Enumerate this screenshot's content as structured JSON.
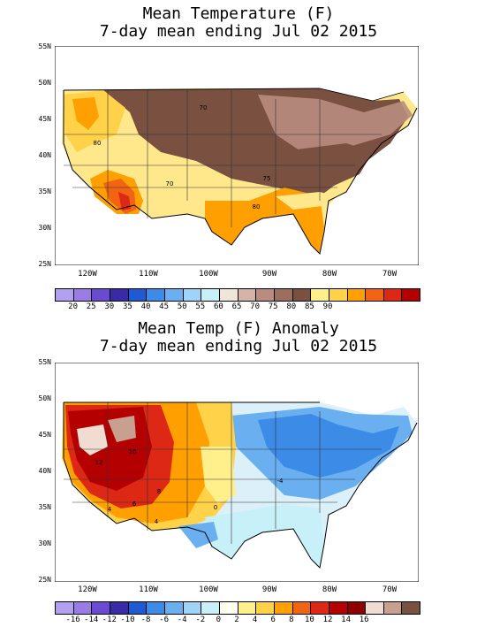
{
  "top": {
    "title1": "Mean Temperature (F)",
    "title2": "7-day mean ending Jul 02 2015",
    "lat_labels": [
      "55N",
      "50N",
      "45N",
      "40N",
      "35N",
      "30N",
      "25N"
    ],
    "lon_labels": [
      "120W",
      "110W",
      "100W",
      "90W",
      "80W",
      "70W"
    ],
    "contour_labels": [
      "70",
      "80",
      "70",
      "75",
      "80"
    ],
    "colorbar_colors": [
      "#b4a0f0",
      "#9b7be6",
      "#6a4ad0",
      "#3b2aa8",
      "#1e5ad2",
      "#3c8be6",
      "#6ab0f0",
      "#9ed4f8",
      "#c8f0f8",
      "#f0e6d8",
      "#d4b4a8",
      "#b88c80",
      "#9c6e60",
      "#7a5040",
      "#fff08c",
      "#ffd24a",
      "#ffa000",
      "#f06414",
      "#dc2814",
      "#b40000"
    ],
    "colorbar_labels": [
      "20",
      "25",
      "30",
      "35",
      "40",
      "45",
      "50",
      "55",
      "60",
      "65",
      "70",
      "75",
      "80",
      "85",
      "90"
    ]
  },
  "bottom": {
    "title1": "Mean Temp (F) Anomaly",
    "title2": "7-day mean ending Jul 02 2015",
    "lat_labels": [
      "55N",
      "50N",
      "45N",
      "40N",
      "35N",
      "30N",
      "25N"
    ],
    "lon_labels": [
      "120W",
      "110W",
      "100W",
      "90W",
      "80W",
      "70W"
    ],
    "contour_labels": [
      "10",
      "12",
      "8",
      "4",
      "6",
      "-4",
      "0",
      "4"
    ],
    "colorbar_colors": [
      "#b4a0f0",
      "#9b7be6",
      "#6a4ad0",
      "#3b2aa8",
      "#1e5ad2",
      "#3c8be6",
      "#6ab0f0",
      "#9ed4f8",
      "#c8f0f8",
      "#fffff0",
      "#fff08c",
      "#ffd24a",
      "#ffa000",
      "#f06414",
      "#dc2814",
      "#b40000",
      "#8c0000",
      "#f0dcd0",
      "#c8a090",
      "#7a5040"
    ],
    "colorbar_labels": [
      "-16",
      "-14",
      "-12",
      "-10",
      "-8",
      "-6",
      "-4",
      "-2",
      "0",
      "2",
      "4",
      "6",
      "8",
      "10",
      "12",
      "14",
      "16"
    ]
  }
}
